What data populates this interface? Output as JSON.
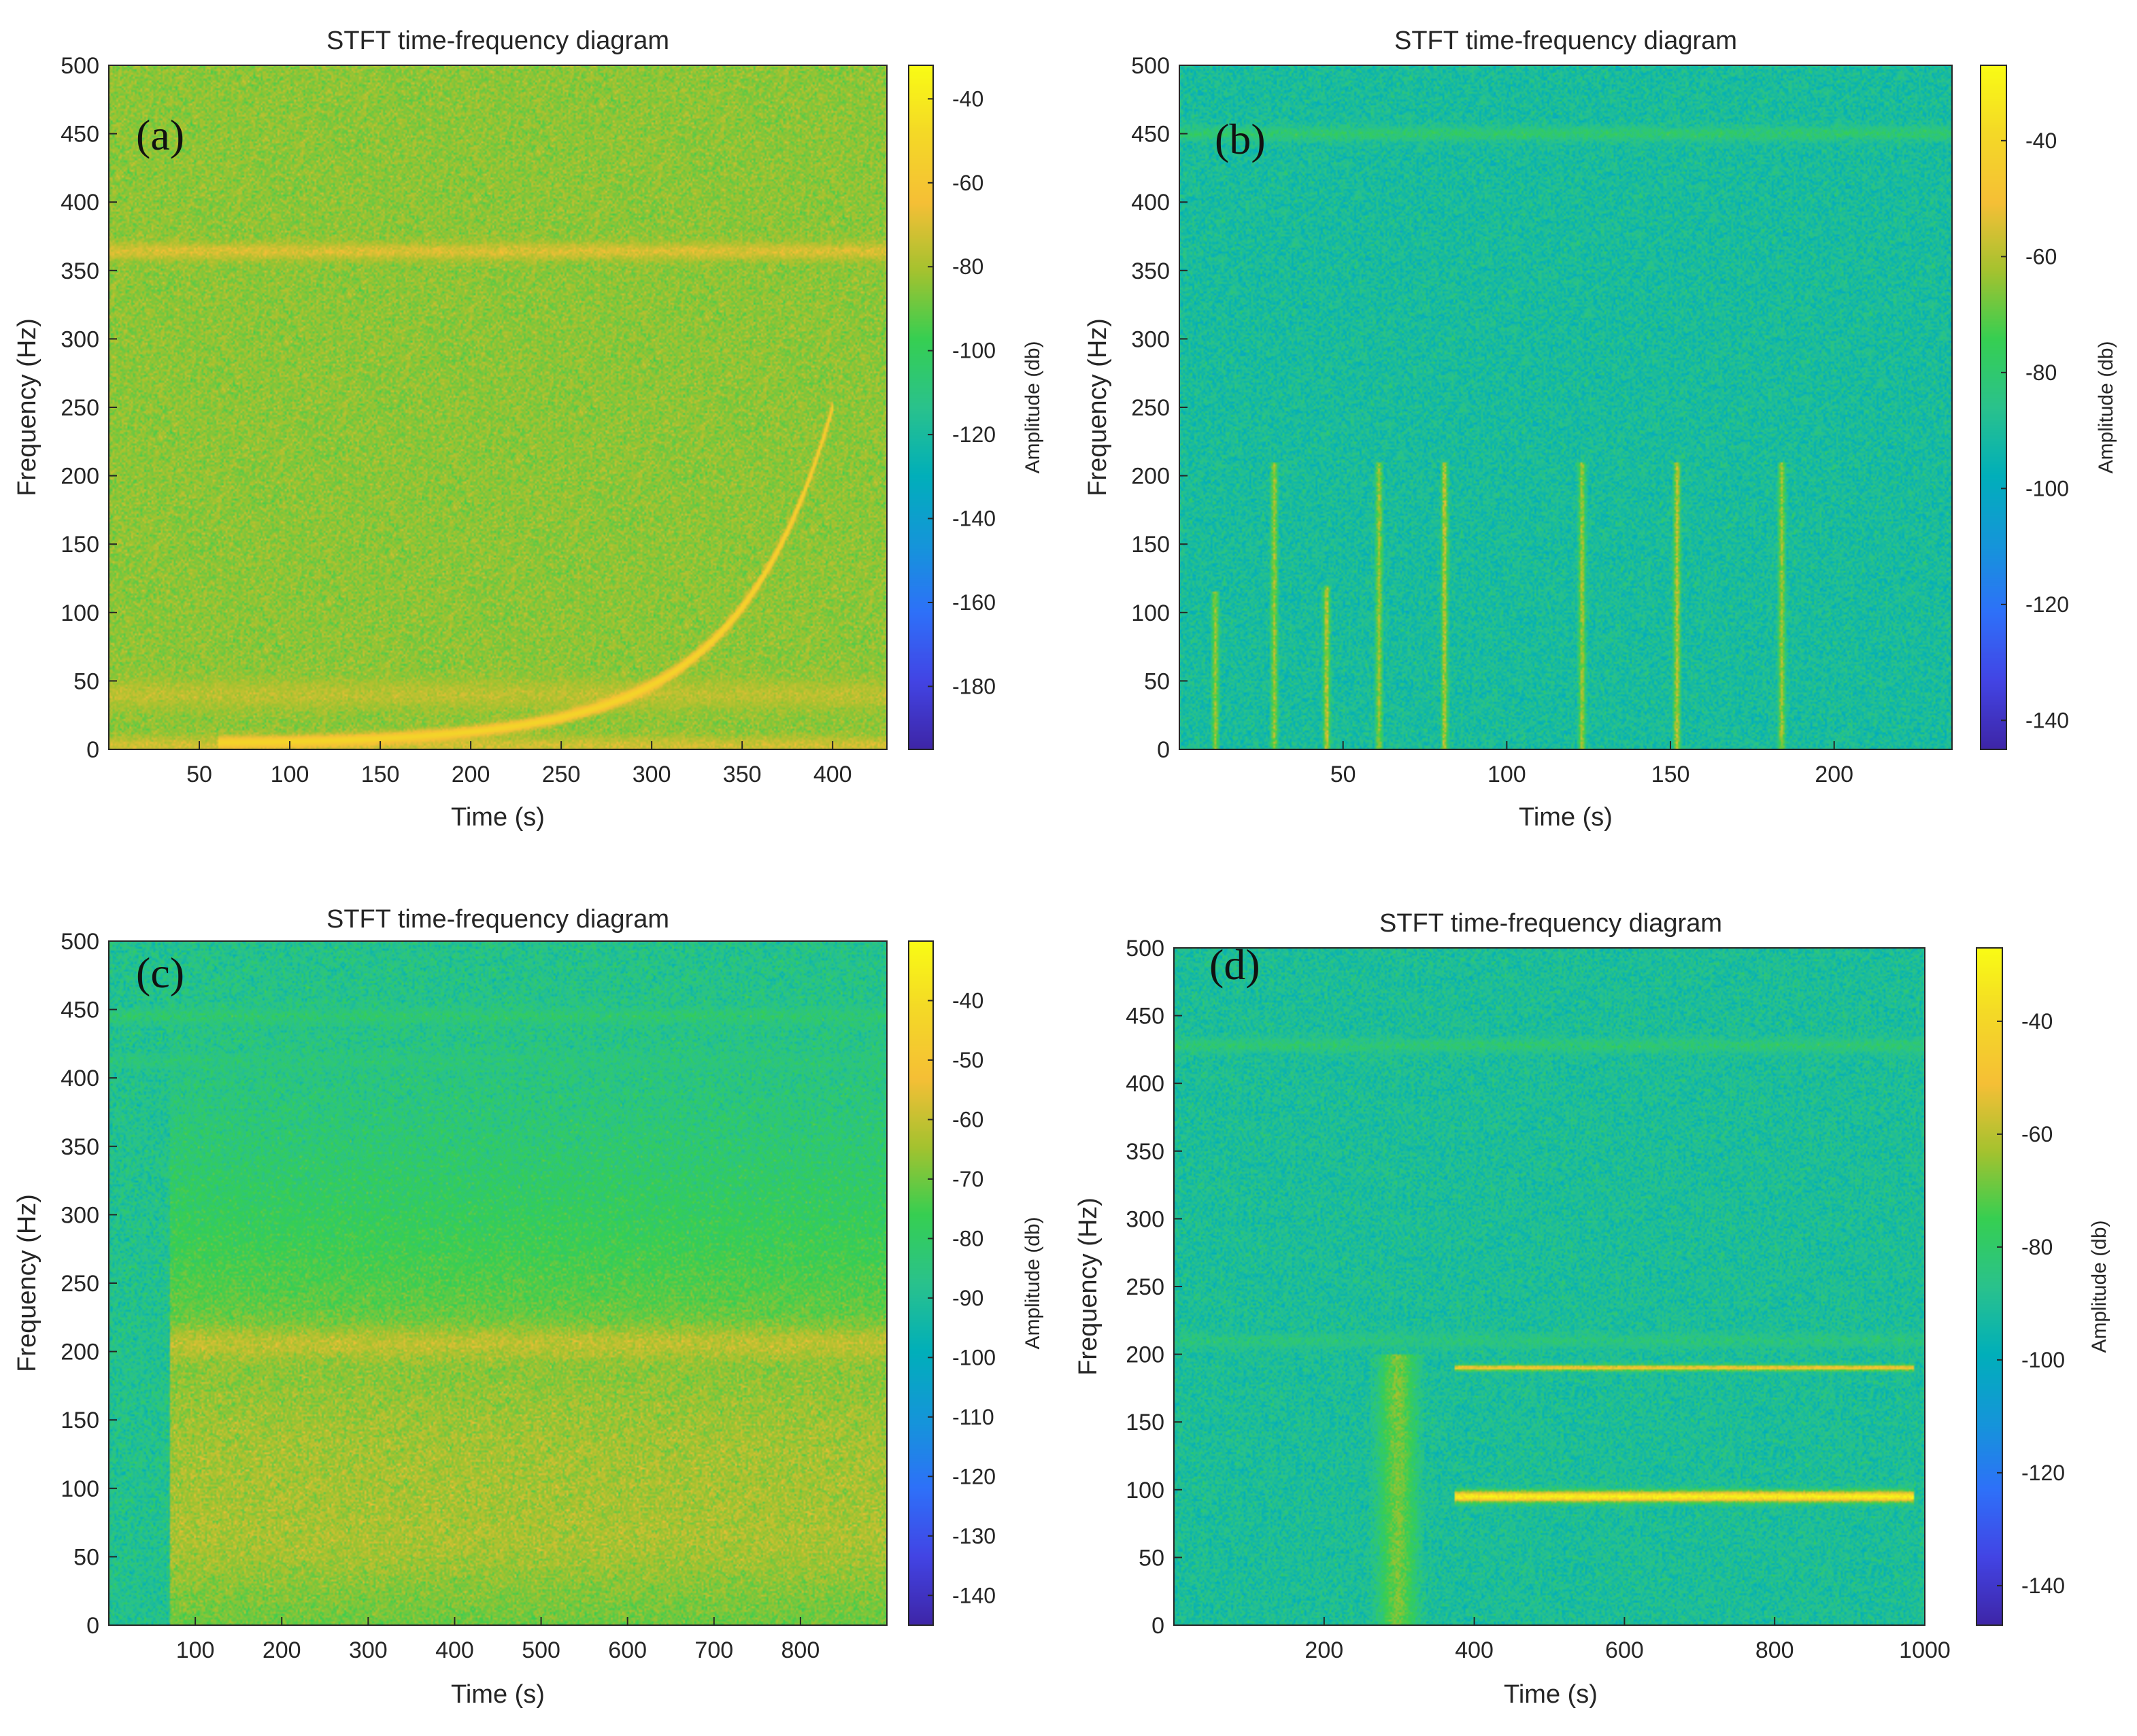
{
  "colormap": [
    "#3e26a8",
    "#4245e5",
    "#2e71f9",
    "#1596d9",
    "#01afba",
    "#2ac28c",
    "#36cf52",
    "#a4c22f",
    "#f5bf36",
    "#f4d827",
    "#f9fb15"
  ],
  "chart_data": [
    {
      "type": "heatmap",
      "panel": "(a)",
      "title": "STFT time-frequency diagram",
      "xlabel": "Time (s)",
      "ylabel": "Frequency (Hz)",
      "colorbar_label": "Amplitude (db)",
      "xlim": [
        0,
        430
      ],
      "ylim": [
        0,
        500
      ],
      "xticks": [
        50,
        100,
        150,
        200,
        250,
        300,
        350,
        400
      ],
      "yticks": [
        0,
        50,
        100,
        150,
        200,
        250,
        300,
        350,
        400,
        450,
        500
      ],
      "clim": [
        -195,
        -32
      ],
      "cticks": [
        -40,
        -60,
        -80,
        -100,
        -120,
        -140,
        -160,
        -180
      ],
      "background_db": -84,
      "bands": [
        {
          "f": 364,
          "width_hz": 6,
          "db": -70
        },
        {
          "f": 40,
          "width_hz": 10,
          "db": -76
        },
        {
          "f": 3,
          "width_hz": 6,
          "db": -72
        }
      ],
      "chirp": {
        "t_start": 60,
        "t_end": 400,
        "f_start": 5,
        "f_end": 250,
        "db": -50
      },
      "vlines": []
    },
    {
      "type": "heatmap",
      "panel": "(b)",
      "title": "STFT time-frequency diagram",
      "xlabel": "Time (s)",
      "ylabel": "Frequency (Hz)",
      "colorbar_label": "Amplitude (db)",
      "xlim": [
        0,
        236
      ],
      "ylim": [
        0,
        500
      ],
      "xticks": [
        50,
        100,
        150,
        200
      ],
      "yticks": [
        0,
        50,
        100,
        150,
        200,
        250,
        300,
        350,
        400,
        450,
        500
      ],
      "clim": [
        -145,
        -27
      ],
      "cticks": [
        -40,
        -60,
        -80,
        -100,
        -120,
        -140
      ],
      "background_db": -90,
      "bands": [
        {
          "f": 450,
          "width_hz": 5,
          "db": -80
        }
      ],
      "chirp": null,
      "vlines": [
        {
          "t": 11,
          "fmax": 115,
          "db": -55
        },
        {
          "t": 29,
          "fmax": 210,
          "db": -55
        },
        {
          "t": 45,
          "fmax": 120,
          "db": -50
        },
        {
          "t": 61,
          "fmax": 210,
          "db": -55
        },
        {
          "t": 81,
          "fmax": 210,
          "db": -50
        },
        {
          "t": 123,
          "fmax": 210,
          "db": -55
        },
        {
          "t": 152,
          "fmax": 210,
          "db": -50
        },
        {
          "t": 184,
          "fmax": 210,
          "db": -55
        }
      ]
    },
    {
      "type": "heatmap",
      "panel": "(c)",
      "title": "STFT time-frequency diagram",
      "xlabel": "Time (s)",
      "ylabel": "Frequency (Hz)",
      "colorbar_label": "Amplitude (db)",
      "xlim": [
        0,
        900
      ],
      "ylim": [
        0,
        500
      ],
      "xticks": [
        100,
        200,
        300,
        400,
        500,
        600,
        700,
        800
      ],
      "yticks": [
        0,
        50,
        100,
        150,
        200,
        250,
        300,
        350,
        400,
        450,
        500
      ],
      "clim": [
        -145,
        -30
      ],
      "cticks": [
        -40,
        -50,
        -60,
        -70,
        -80,
        -90,
        -100,
        -110,
        -120,
        -130,
        -140
      ],
      "background_db": -88,
      "bands": [
        {
          "f": 205,
          "width_hz": 12,
          "db": -48,
          "t_start": 70
        },
        {
          "f": 97,
          "width_hz": 18,
          "db": -45,
          "t_start": 70
        },
        {
          "f": 70,
          "width_hz": 25,
          "db": -50,
          "t_start": 70
        },
        {
          "f": 110,
          "width_hz": 200,
          "db": -64,
          "t_start": 70
        },
        {
          "f": 445,
          "width_hz": 5,
          "db": -82
        },
        {
          "f": 412,
          "width_hz": 5,
          "db": -84
        }
      ],
      "chirp": null,
      "vlines": []
    },
    {
      "type": "heatmap",
      "panel": "(d)",
      "title": "STFT time-frequency diagram",
      "xlabel": "Time (s)",
      "ylabel": "Frequency (Hz)",
      "colorbar_label": "Amplitude (db)",
      "xlim": [
        0,
        1000
      ],
      "ylim": [
        0,
        500
      ],
      "xticks": [
        200,
        400,
        600,
        800,
        1000
      ],
      "yticks": [
        0,
        50,
        100,
        150,
        200,
        250,
        300,
        350,
        400,
        450,
        500
      ],
      "clim": [
        -147,
        -27
      ],
      "cticks": [
        -40,
        -60,
        -80,
        -100,
        -120,
        -140
      ],
      "background_db": -90,
      "bands": [
        {
          "f": 95,
          "width_hz": 4,
          "db": -30,
          "t_start": 375,
          "t_end": 985
        },
        {
          "f": 190,
          "width_hz": 2,
          "db": -45,
          "t_start": 375,
          "t_end": 985
        },
        {
          "f": 428,
          "width_hz": 5,
          "db": -82
        },
        {
          "f": 210,
          "width_hz": 5,
          "db": -84
        }
      ],
      "chirp": null,
      "vlines": [
        {
          "t": 298,
          "fmax": 200,
          "db": -62,
          "width_s": 24
        }
      ]
    }
  ]
}
